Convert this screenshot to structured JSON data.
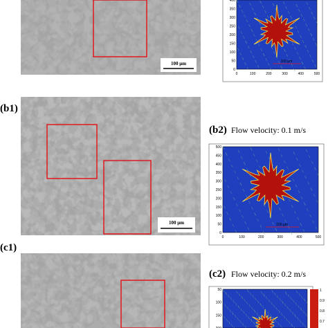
{
  "panels": [
    {
      "id": "a",
      "micrograph": {
        "scale_bar": "100 µm"
      },
      "simulation": {
        "y_ticks": [
          "400",
          "350",
          "300",
          "250",
          "200",
          "150",
          "100",
          "50",
          "0"
        ],
        "x_ticks": [
          "0",
          "100",
          "200",
          "300",
          "400",
          "500"
        ],
        "scale_bar": "100 µm"
      }
    },
    {
      "id": "b",
      "micrograph": {
        "label": "(b1)",
        "scale_bar": "100 µm"
      },
      "simulation": {
        "label": "(b2)",
        "caption": "Flow velocity: 0.1 m/s",
        "y_ticks": [
          "500",
          "450",
          "400",
          "350",
          "300",
          "250",
          "200",
          "150",
          "100",
          "50",
          "0"
        ],
        "x_ticks": [
          "0",
          "100",
          "200",
          "300",
          "400",
          "500"
        ],
        "scale_bar": "100 µm"
      }
    },
    {
      "id": "c",
      "micrograph": {
        "label": "(c1)"
      },
      "simulation": {
        "label": "(c2)",
        "caption": "Flow velocity: 0.2 m/s",
        "y_ticks": [
          "50",
          "100",
          "150",
          "200"
        ],
        "colorbar_ticks": [
          "1",
          "0.9",
          "0.8",
          "0.7"
        ]
      }
    }
  ]
}
